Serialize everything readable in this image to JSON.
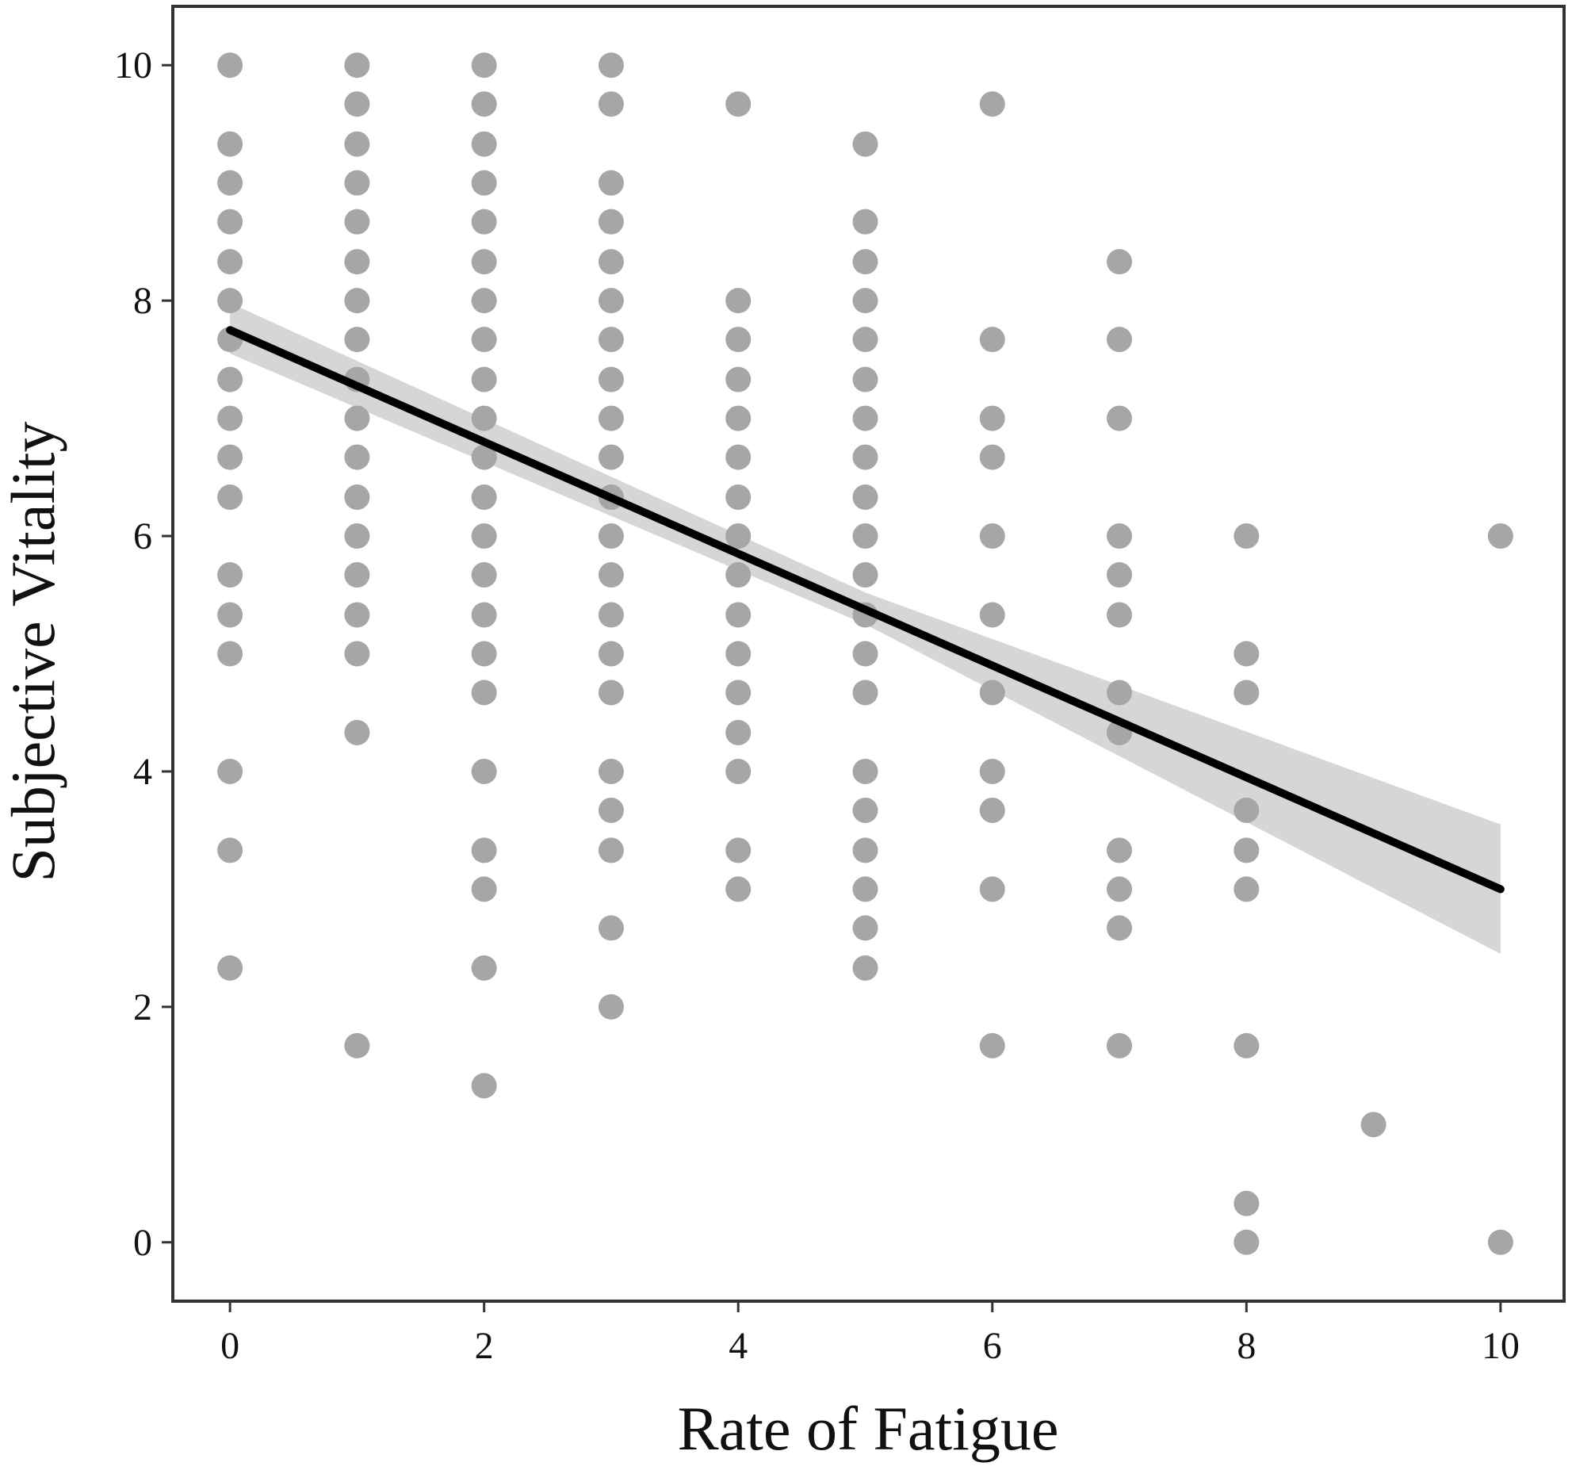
{
  "chart_data": {
    "type": "scatter",
    "title": "",
    "xlabel": "Rate of Fatigue",
    "ylabel": "Subjective Vitality",
    "xlim": [
      -0.45,
      10.5
    ],
    "ylim": [
      -0.5,
      10.5
    ],
    "x_ticks": [
      0,
      2,
      4,
      6,
      8,
      10
    ],
    "y_ticks": [
      0,
      2,
      4,
      6,
      8,
      10
    ],
    "x_tick_labels": [
      "0",
      "2",
      "4",
      "6",
      "8",
      "10"
    ],
    "y_tick_labels": [
      "0",
      "2",
      "4",
      "6",
      "8",
      "10"
    ],
    "grid": false,
    "legend": "none",
    "colors": {
      "points": "#a6a6a6",
      "line": "#000000",
      "band": "#cfcfcf",
      "axis": "#333333",
      "text": "#111111"
    },
    "points_by_x": [
      {
        "x": 0,
        "y": [
          10,
          9.33,
          9,
          8.67,
          8.33,
          8,
          7.67,
          7.33,
          7,
          6.67,
          6.33,
          5.67,
          5.33,
          5,
          4,
          3.33,
          2.33
        ]
      },
      {
        "x": 1,
        "y": [
          10,
          9.67,
          9.33,
          9,
          8.67,
          8.33,
          8,
          7.67,
          7.33,
          7,
          6.67,
          6.33,
          6,
          5.67,
          5.33,
          5,
          4.33,
          1.67
        ]
      },
      {
        "x": 2,
        "y": [
          10,
          9.67,
          9.33,
          9,
          8.67,
          8.33,
          8,
          7.67,
          7.33,
          7,
          6.67,
          6.33,
          6,
          5.67,
          5.33,
          5,
          4.67,
          4,
          3.33,
          3,
          2.33,
          1.33
        ]
      },
      {
        "x": 3,
        "y": [
          10,
          9.67,
          9,
          8.67,
          8.33,
          8,
          7.67,
          7.33,
          7,
          6.67,
          6.33,
          6,
          5.67,
          5.33,
          5,
          4.67,
          4,
          3.67,
          3.33,
          2.67,
          2
        ]
      },
      {
        "x": 4,
        "y": [
          9.67,
          8,
          7.67,
          7.33,
          7,
          6.67,
          6.33,
          6,
          5.67,
          5.33,
          5,
          4.67,
          4.33,
          4,
          3.33,
          3
        ]
      },
      {
        "x": 5,
        "y": [
          9.33,
          8.67,
          8.33,
          8,
          7.67,
          7.33,
          7,
          6.67,
          6.33,
          6,
          5.67,
          5.33,
          5,
          4.67,
          4,
          3.67,
          3.33,
          3,
          2.67,
          2.33
        ]
      },
      {
        "x": 6,
        "y": [
          9.67,
          7.67,
          7,
          6.67,
          6,
          5.33,
          4.67,
          4,
          3.67,
          3,
          1.67
        ]
      },
      {
        "x": 7,
        "y": [
          8.33,
          7.67,
          7,
          6,
          5.67,
          5.33,
          4.67,
          4.33,
          3.33,
          3,
          2.67,
          1.67
        ]
      },
      {
        "x": 8,
        "y": [
          6,
          5,
          4.67,
          3.67,
          3.33,
          3,
          1.67,
          0.33,
          0
        ]
      },
      {
        "x": 9,
        "y": [
          1
        ]
      },
      {
        "x": 10,
        "y": [
          6,
          0
        ]
      }
    ],
    "fit_line": {
      "x": [
        0,
        10
      ],
      "y": [
        7.75,
        3
      ]
    },
    "confidence_band": {
      "x": [
        0,
        5,
        10
      ],
      "lower": [
        7.55,
        5.25,
        2.45
      ],
      "upper": [
        7.98,
        5.52,
        3.55
      ]
    }
  }
}
